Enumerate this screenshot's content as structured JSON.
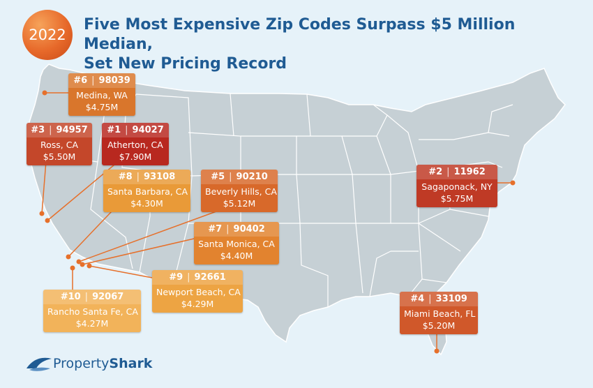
{
  "badge_year": "2022",
  "title_line1": "Five Most Expensive Zip Codes Surpass $5 Million Median,",
  "title_line2": "Set New Pricing Record",
  "logo_text_light": "Property",
  "logo_text_bold": "Shark",
  "listings": [
    {
      "rank": "#6",
      "zip": "98039",
      "city": "Medina, WA",
      "price": "$4.75M",
      "color": "#d9762c"
    },
    {
      "rank": "#3",
      "zip": "94957",
      "city": "Ross, CA",
      "price": "$5.50M",
      "color": "#c4472a"
    },
    {
      "rank": "#1",
      "zip": "94027",
      "city": "Atherton, CA",
      "price": "$7.90M",
      "color": "#b8281f"
    },
    {
      "rank": "#8",
      "zip": "93108",
      "city": "Santa Barbara, CA",
      "price": "$4.30M",
      "color": "#e99a38"
    },
    {
      "rank": "#5",
      "zip": "90210",
      "city": "Beverly Hills, CA",
      "price": "$5.12M",
      "color": "#d8692a"
    },
    {
      "rank": "#2",
      "zip": "11962",
      "city": "Sagaponack, NY",
      "price": "$5.75M",
      "color": "#bf3a25"
    },
    {
      "rank": "#7",
      "zip": "90402",
      "city": "Santa Monica, CA",
      "price": "$4.40M",
      "color": "#e2832f"
    },
    {
      "rank": "#9",
      "zip": "92661",
      "city": "Newport Beach, CA",
      "price": "$4.29M",
      "color": "#eda443"
    },
    {
      "rank": "#10",
      "zip": "92067",
      "city": "Rancho Santa Fe, CA",
      "price": "$4.27M",
      "color": "#f2b35a"
    },
    {
      "rank": "#4",
      "zip": "33109",
      "city": "Miami Beach, FL",
      "price": "$5.20M",
      "color": "#d0582a"
    }
  ]
}
